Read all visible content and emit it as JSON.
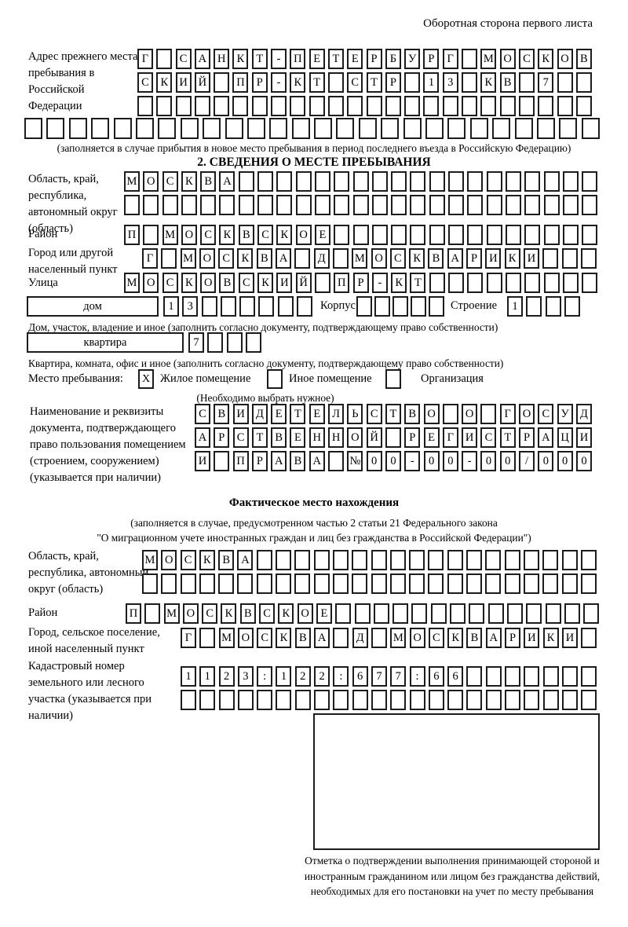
{
  "header": {
    "note": "Оборотная сторона первого листа"
  },
  "prev_address": {
    "label": "Адрес прежнего места пребывания в Российской Федерации",
    "row1": [
      "Г",
      "",
      "С",
      "А",
      "Н",
      "К",
      "Т",
      "-",
      "П",
      "Е",
      "Т",
      "Е",
      "Р",
      "Б",
      "У",
      "Р",
      "Г",
      "",
      "М",
      "О",
      "С",
      "К",
      "О",
      "В"
    ],
    "row2": [
      "С",
      "К",
      "И",
      "Й",
      "",
      "П",
      "Р",
      "-",
      "К",
      "Т",
      "",
      "С",
      "Т",
      "Р",
      "",
      "1",
      "3",
      "",
      "К",
      "В",
      "",
      "7",
      "",
      ""
    ],
    "row3": [
      "",
      "",
      "",
      "",
      "",
      "",
      "",
      "",
      "",
      "",
      "",
      "",
      "",
      "",
      "",
      "",
      "",
      "",
      "",
      "",
      "",
      "",
      "",
      ""
    ],
    "overflow_row": [
      "",
      "",
      "",
      "",
      "",
      "",
      "",
      "",
      "",
      "",
      "",
      "",
      "",
      "",
      "",
      "",
      "",
      "",
      "",
      "",
      "",
      "",
      "",
      "",
      "",
      ""
    ],
    "caption": "(заполняется в случае прибытия в новое место пребывания в период последнего въезда в Российскую Федерацию)"
  },
  "section2": {
    "title": "2. СВЕДЕНИЯ О МЕСТЕ ПРЕБЫВАНИЯ",
    "region": {
      "label": "Область, край, республика, автономный округ (область)",
      "row1": [
        "М",
        "О",
        "С",
        "К",
        "В",
        "А",
        "",
        "",
        "",
        "",
        "",
        "",
        "",
        "",
        "",
        "",
        "",
        "",
        "",
        "",
        "",
        "",
        "",
        "",
        ""
      ],
      "row2": [
        "",
        "",
        "",
        "",
        "",
        "",
        "",
        "",
        "",
        "",
        "",
        "",
        "",
        "",
        "",
        "",
        "",
        "",
        "",
        "",
        "",
        "",
        "",
        "",
        ""
      ]
    },
    "district": {
      "label": "Район",
      "row": [
        "П",
        "",
        "М",
        "О",
        "С",
        "К",
        "В",
        "С",
        "К",
        "О",
        "Е",
        "",
        "",
        "",
        "",
        "",
        "",
        "",
        "",
        "",
        "",
        "",
        "",
        "",
        ""
      ]
    },
    "city": {
      "label": "Город или другой населенный пункт",
      "row": [
        "Г",
        "",
        "М",
        "О",
        "С",
        "К",
        "В",
        "А",
        "",
        "Д",
        "",
        "М",
        "О",
        "С",
        "К",
        "В",
        "А",
        "Р",
        "И",
        "К",
        "И",
        "",
        "",
        ""
      ]
    },
    "street": {
      "label": "Улица",
      "row": [
        "М",
        "О",
        "С",
        "К",
        "О",
        "В",
        "С",
        "К",
        "И",
        "Й",
        "",
        "П",
        "Р",
        "-",
        "К",
        "Т",
        "",
        "",
        "",
        "",
        "",
        "",
        "",
        "",
        ""
      ]
    },
    "house": {
      "box_label": "дом",
      "cells": [
        "1",
        "3",
        "",
        "",
        "",
        "",
        "",
        ""
      ],
      "korpus_label": "Корпус",
      "korpus_cells": [
        "",
        "",
        "",
        "",
        ""
      ],
      "stroenie_label": "Строение",
      "stroenie_cells": [
        "1",
        "",
        "",
        ""
      ],
      "caption": "Дом, участок, владение и иное (заполнить согласно документу, подтверждающему право собственности)"
    },
    "apartment": {
      "box_label": "квартира",
      "cells": [
        "7",
        "",
        "",
        ""
      ],
      "caption": "Квартира, комната, офис и иное (заполнить согласно документу, подтверждающему право собственности)"
    },
    "stay_type": {
      "label": "Место пребывания:",
      "options": [
        {
          "label": "Жилое помещение",
          "checked": "X"
        },
        {
          "label": "Иное помещение",
          "checked": ""
        },
        {
          "label": "Организация",
          "checked": ""
        }
      ],
      "caption": "(Необходимо выбрать нужное)"
    },
    "document": {
      "label": "Наименование и реквизиты документа, подтверждающего право пользования помещением (строением, сооружением) (указывается при наличии)",
      "row1": [
        "С",
        "В",
        "И",
        "Д",
        "Е",
        "Т",
        "Е",
        "Л",
        "Ь",
        "С",
        "Т",
        "В",
        "О",
        "",
        "О",
        "",
        "Г",
        "О",
        "С",
        "У",
        "Д"
      ],
      "row2": [
        "А",
        "Р",
        "С",
        "Т",
        "В",
        "Е",
        "Н",
        "Н",
        "О",
        "Й",
        "",
        "Р",
        "Е",
        "Г",
        "И",
        "С",
        "Т",
        "Р",
        "А",
        "Ц",
        "И"
      ],
      "row3": [
        "И",
        "",
        "П",
        "Р",
        "А",
        "В",
        "А",
        "",
        "№",
        "0",
        "0",
        "-",
        "0",
        "0",
        "-",
        "0",
        "0",
        "/",
        "0",
        "0",
        "0"
      ]
    }
  },
  "actual_location": {
    "title": "Фактическое место нахождения",
    "caption_line1": "(заполняется в случае, предусмотренном частью 2 статьи 21 Федерального закона",
    "caption_line2": "\"О миграционном учете иностранных граждан и лиц без гражданства в Российской Федерации\")",
    "region": {
      "label": "Область, край, республика, автономный округ (область)",
      "row1": [
        "М",
        "О",
        "С",
        "К",
        "В",
        "А",
        "",
        "",
        "",
        "",
        "",
        "",
        "",
        "",
        "",
        "",
        "",
        "",
        "",
        "",
        "",
        "",
        "",
        ""
      ],
      "row2": [
        "",
        "",
        "",
        "",
        "",
        "",
        "",
        "",
        "",
        "",
        "",
        "",
        "",
        "",
        "",
        "",
        "",
        "",
        "",
        "",
        "",
        "",
        "",
        ""
      ]
    },
    "district": {
      "label": "Район",
      "row": [
        "П",
        "",
        "М",
        "О",
        "С",
        "К",
        "В",
        "С",
        "К",
        "О",
        "Е",
        "",
        "",
        "",
        "",
        "",
        "",
        "",
        "",
        "",
        "",
        "",
        "",
        "",
        ""
      ]
    },
    "city": {
      "label": "Город, сельское поселение, иной населенный пункт",
      "row": [
        "Г",
        "",
        "М",
        "О",
        "С",
        "К",
        "В",
        "А",
        "",
        "Д",
        "",
        "М",
        "О",
        "С",
        "К",
        "В",
        "А",
        "Р",
        "И",
        "К",
        "И",
        ""
      ]
    },
    "cadastral": {
      "label": "Кадастровый номер земельного или лесного участка (указывается при наличии)",
      "row1": [
        "1",
        "1",
        "2",
        "3",
        ":",
        "1",
        "2",
        "2",
        ":",
        "6",
        "7",
        "7",
        ":",
        "6",
        "6",
        "",
        "",
        "",
        "",
        "",
        "",
        ""
      ],
      "row2": [
        "",
        "",
        "",
        "",
        "",
        "",
        "",
        "",
        "",
        "",
        "",
        "",
        "",
        "",
        "",
        "",
        "",
        "",
        "",
        "",
        "",
        ""
      ]
    },
    "stamp_caption": "Отметка о подтверждении выполнения принимающей стороной и иностранным гражданином или лицом без гражданства действий, необходимых для его постановки на учет по месту пребывания"
  }
}
